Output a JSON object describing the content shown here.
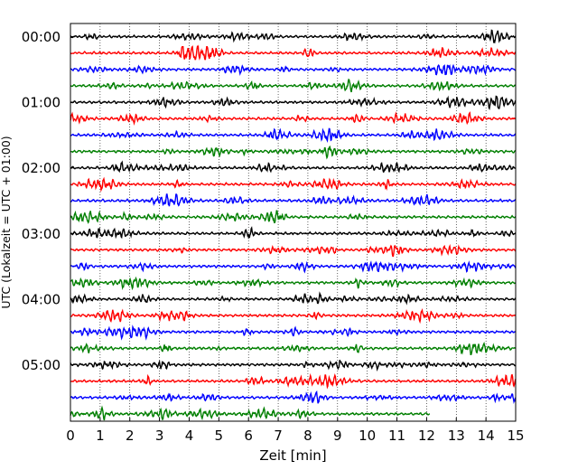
{
  "chart_data": {
    "type": "line",
    "title": "",
    "xlabel": "Zeit  [min]",
    "ylabel": "UTC (Lokalzeit = UTC + 01:00)",
    "xlim": [
      0,
      15
    ],
    "x_ticks": [
      "0",
      "1",
      "2",
      "3",
      "4",
      "5",
      "6",
      "7",
      "8",
      "9",
      "10",
      "11",
      "12",
      "13",
      "14",
      "15"
    ],
    "y_ticks": [
      {
        "label": "00:00",
        "trace": 0
      },
      {
        "label": "01:00",
        "trace": 4
      },
      {
        "label": "02:00",
        "trace": 8
      },
      {
        "label": "03:00",
        "trace": 12
      },
      {
        "label": "04:00",
        "trace": 16
      },
      {
        "label": "05:00",
        "trace": 20
      }
    ],
    "vertical_gridlines": "dotted at each minute",
    "trace_interval_minutes": 15,
    "trace_colors": [
      "#000000",
      "#ff0000",
      "#0000ff",
      "#007f00"
    ],
    "trace_count": 24,
    "last_trace_end_min": 12.1
  }
}
